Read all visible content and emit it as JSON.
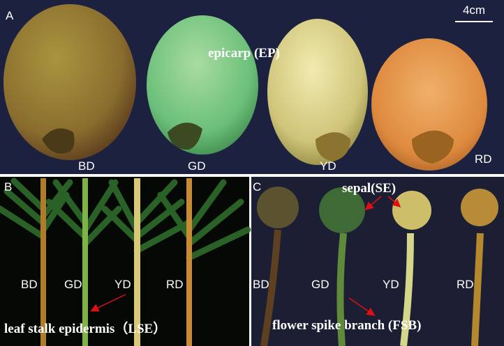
{
  "panels": {
    "a": {
      "label": "A",
      "scale": "4cm",
      "annotation": "epicarp (EP)",
      "samples": [
        "BD",
        "GD",
        "YD",
        "RD"
      ]
    },
    "b": {
      "label": "B",
      "annotation": "leaf stalk epidermis（LSE）",
      "samples": [
        "BD",
        "GD",
        "YD",
        "RD"
      ]
    },
    "c": {
      "label": "C",
      "annotation_top": "sepal(SE)",
      "annotation_bottom": "flower spike branch (FSB)",
      "samples": [
        "BD",
        "GD",
        "YD",
        "RD"
      ]
    }
  }
}
